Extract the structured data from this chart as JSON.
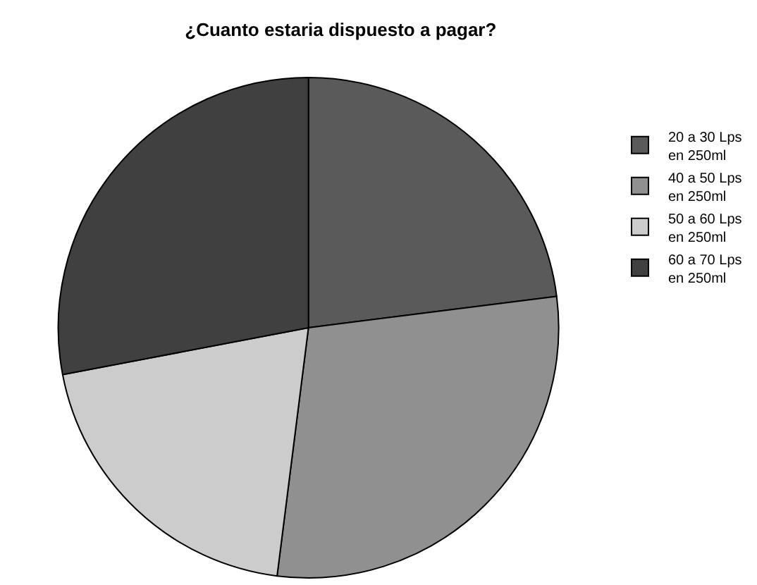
{
  "chart_data": {
    "type": "pie",
    "title": "¿Cuanto estaria dispuesto a pagar?",
    "categories": [
      "20 a 30 Lps en 250ml",
      "40 a 50 Lps en 250ml",
      "50 a 60 Lps en 250ml",
      "60 a 70 Lps en 250ml"
    ],
    "values": [
      23,
      29,
      20,
      28
    ],
    "colors": [
      "#5a5a5a",
      "#909090",
      "#cccccc",
      "#404040"
    ],
    "legend": "top right"
  }
}
